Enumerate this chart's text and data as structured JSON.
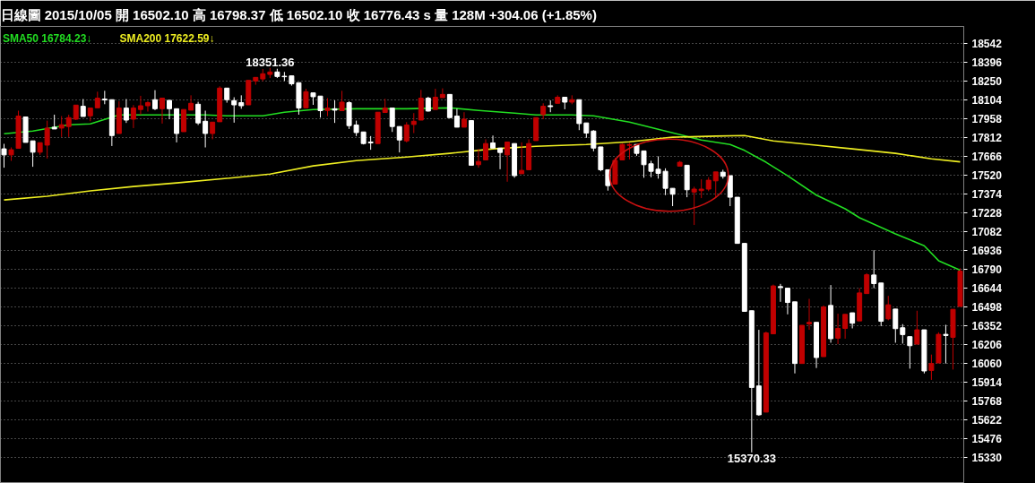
{
  "chart_data": {
    "type": "candlestick",
    "title": "日線圖 2015/10/05 開 16502.10 高 16798.37 低 16502.10 收 16776.43 s 量 128M +304.06 (+1.85%)",
    "categories": [
      null,
      null,
      null,
      null,
      null,
      null,
      null,
      null,
      null,
      null,
      null,
      null,
      null,
      null,
      null,
      null,
      null,
      null,
      null,
      null,
      null,
      null,
      null,
      null,
      null,
      null,
      null,
      null,
      null,
      null,
      null,
      null,
      null,
      null,
      null,
      null,
      null,
      null,
      null,
      null,
      null,
      null,
      null,
      null,
      null,
      null,
      null,
      null,
      null,
      null,
      null,
      null,
      null,
      null,
      null,
      null,
      null,
      null,
      null,
      null,
      null,
      null,
      null,
      null,
      null,
      null,
      null,
      null,
      null,
      null,
      null,
      null,
      null,
      null,
      null,
      null,
      null,
      null,
      null,
      null,
      null,
      null,
      null,
      null,
      null,
      null,
      null,
      null,
      null,
      null,
      null,
      null,
      null,
      null,
      null,
      null,
      null,
      null,
      null,
      null,
      null,
      null,
      null,
      null,
      null,
      null,
      null,
      null,
      null,
      null,
      null,
      null,
      null,
      null,
      null,
      null,
      null,
      null,
      null,
      null,
      null,
      null,
      null,
      null,
      null,
      null,
      null,
      null,
      null,
      null,
      null,
      null,
      null,
      null
    ],
    "ohlc": [
      [
        17724,
        17763,
        17578,
        17677
      ],
      [
        17677,
        17735,
        17631,
        17717
      ],
      [
        17728,
        18020,
        17728,
        17978
      ],
      [
        17971,
        17971,
        17774,
        17774
      ],
      [
        17786,
        17786,
        17585,
        17698
      ],
      [
        17698,
        17772,
        17677,
        17772
      ],
      [
        17753,
        17943,
        17649,
        17885
      ],
      [
        17892,
        17989,
        17878,
        17878
      ],
      [
        17885,
        17978,
        17816,
        17911
      ],
      [
        17897,
        17989,
        17816,
        17966
      ],
      [
        17954,
        18063,
        17947,
        18063
      ],
      [
        18054,
        18110,
        17975,
        17975
      ],
      [
        17980,
        18040,
        17938,
        18040
      ],
      [
        18042,
        18167,
        18042,
        18117
      ],
      [
        18110,
        18174,
        18070,
        18103
      ],
      [
        18105,
        18105,
        17746,
        17827
      ],
      [
        17843,
        18093,
        17843,
        18040
      ],
      [
        18040,
        18110,
        17925,
        17947
      ],
      [
        17954,
        18063,
        17885,
        18040
      ],
      [
        18029,
        18135,
        17989,
        18058
      ],
      [
        18058,
        18093,
        18013,
        18082
      ],
      [
        18105,
        18179,
        18024,
        18035
      ],
      [
        18035,
        18117,
        17920,
        18117
      ],
      [
        18100,
        18100,
        17954,
        18035
      ],
      [
        18035,
        18035,
        17774,
        17843
      ],
      [
        17857,
        18029,
        17857,
        18029
      ],
      [
        18024,
        18139,
        18024,
        18077
      ],
      [
        18070,
        18089,
        17909,
        17925
      ],
      [
        17938,
        18020,
        17735,
        17843
      ],
      [
        17843,
        17931,
        17798,
        17931
      ],
      [
        17934,
        18209,
        17934,
        18195
      ],
      [
        18195,
        18195,
        18082,
        18105
      ],
      [
        18098,
        18124,
        17927,
        18065
      ],
      [
        18082,
        18139,
        18035,
        18058
      ],
      [
        18065,
        18255,
        18065,
        18255
      ],
      [
        18250,
        18278,
        18221,
        18278
      ],
      [
        18266,
        18343,
        18248,
        18306
      ],
      [
        18301,
        18351.36,
        18273,
        18320
      ],
      [
        18320,
        18345,
        18273,
        18285
      ],
      [
        18287,
        18320,
        18250,
        18283
      ],
      [
        18290,
        18290,
        18214,
        18228
      ],
      [
        18237,
        18237,
        17989,
        18040
      ],
      [
        18042,
        18190,
        18042,
        18167
      ],
      [
        18158,
        18158,
        18065,
        18128
      ],
      [
        18133,
        18133,
        17966,
        18020
      ],
      [
        18022,
        18117,
        17978,
        18040
      ],
      [
        18035,
        18100,
        17925,
        18024
      ],
      [
        18020,
        18174,
        18020,
        18086
      ],
      [
        18082,
        18093,
        17878,
        17904
      ],
      [
        17909,
        17943,
        17823,
        17850
      ],
      [
        17855,
        17855,
        17758,
        17765
      ],
      [
        17777,
        17823,
        17717,
        17770
      ],
      [
        17765,
        18008,
        17765,
        18008
      ],
      [
        18006,
        18112,
        18006,
        18040
      ],
      [
        18040,
        18040,
        17855,
        17897
      ],
      [
        17897,
        17897,
        17696,
        17793
      ],
      [
        17786,
        17931,
        17774,
        17909
      ],
      [
        17913,
        18001,
        17846,
        17938
      ],
      [
        17947,
        18181,
        17947,
        18117
      ],
      [
        18117,
        18128,
        18013,
        18017
      ],
      [
        18029,
        18190,
        18029,
        18124
      ],
      [
        18121,
        18193,
        18121,
        18146
      ],
      [
        18146,
        18146,
        17966,
        17966
      ],
      [
        17978,
        18035,
        17892,
        17892
      ],
      [
        17892,
        18008,
        17892,
        17954
      ],
      [
        17943,
        17943,
        17597,
        17597
      ],
      [
        17601,
        17724,
        17578,
        17626
      ],
      [
        17638,
        17798,
        17638,
        17765
      ],
      [
        17770,
        17827,
        17730,
        17730
      ],
      [
        17730,
        17730,
        17566,
        17696
      ],
      [
        17677,
        17777,
        17469,
        17777
      ],
      [
        17765,
        17765,
        17500,
        17516
      ],
      [
        17531,
        17774,
        17531,
        17557
      ],
      [
        17562,
        17798,
        17562,
        17765
      ],
      [
        17788,
        17966,
        17788,
        17966
      ],
      [
        17989,
        18077,
        17954,
        18054
      ],
      [
        18058,
        18100,
        18008,
        18051
      ],
      [
        18077,
        18139,
        18077,
        18124
      ],
      [
        18124,
        18124,
        18031,
        18086
      ],
      [
        18086,
        18139,
        18070,
        18105
      ],
      [
        18105,
        18105,
        17869,
        17920
      ],
      [
        17925,
        17925,
        17809,
        17846
      ],
      [
        17862,
        17869,
        17705,
        17730
      ],
      [
        17739,
        17739,
        17550,
        17562
      ],
      [
        17562,
        17562,
        17400,
        17439
      ],
      [
        17451,
        17654,
        17451,
        17635
      ],
      [
        17638,
        17765,
        17638,
        17758
      ],
      [
        17751,
        17770,
        17642,
        17758
      ],
      [
        17758,
        17758,
        17670,
        17689
      ],
      [
        17708,
        17708,
        17500,
        17601
      ],
      [
        17608,
        17631,
        17504,
        17550
      ],
      [
        17566,
        17666,
        17493,
        17534
      ],
      [
        17550,
        17573,
        17365,
        17418
      ],
      [
        17418,
        17418,
        17280,
        17372
      ],
      [
        17590,
        17631,
        17590,
        17620
      ],
      [
        17597,
        17597,
        17349,
        17407
      ],
      [
        17389,
        17430,
        17134,
        17412
      ],
      [
        17400,
        17488,
        17342,
        17412
      ],
      [
        17412,
        17504,
        17396,
        17481
      ],
      [
        17476,
        17545,
        17342,
        17545
      ],
      [
        17543,
        17562,
        17493,
        17511
      ],
      [
        17516,
        17516,
        17280,
        17349
      ],
      [
        17349,
        17349,
        16991,
        16991
      ],
      [
        16991,
        16991,
        16464,
        16464
      ],
      [
        16469,
        16469,
        15370.33,
        15874
      ],
      [
        15886,
        16321,
        15655,
        15662
      ],
      [
        15683,
        16307,
        15683,
        16297
      ],
      [
        16290,
        16672,
        16290,
        16661
      ],
      [
        16656,
        16677,
        16538,
        16649
      ],
      [
        16644,
        16644,
        16441,
        16533
      ],
      [
        16538,
        16538,
        15983,
        16060
      ],
      [
        16060,
        16356,
        16060,
        16356
      ],
      [
        16367,
        16561,
        16321,
        16379
      ],
      [
        16379,
        16379,
        16025,
        16106
      ],
      [
        16113,
        16510,
        16113,
        16498
      ],
      [
        16510,
        16668,
        16221,
        16252
      ],
      [
        16256,
        16446,
        16210,
        16332
      ],
      [
        16332,
        16441,
        16252,
        16441
      ],
      [
        16453,
        16453,
        16332,
        16372
      ],
      [
        16390,
        16644,
        16390,
        16607
      ],
      [
        16602,
        16760,
        16602,
        16748
      ],
      [
        16746,
        16938,
        16644,
        16679
      ],
      [
        16684,
        16684,
        16349,
        16387
      ],
      [
        16406,
        16584,
        16395,
        16515
      ],
      [
        16482,
        16482,
        16221,
        16330
      ],
      [
        16337,
        16365,
        16214,
        16284
      ],
      [
        16268,
        16268,
        16020,
        16198
      ],
      [
        16210,
        16469,
        16210,
        16321
      ],
      [
        16321,
        16321,
        15983,
        16002
      ],
      [
        16006,
        16129,
        15933,
        16060
      ],
      [
        16064,
        16302,
        16064,
        16286
      ],
      [
        16286,
        16360,
        16060,
        16277
      ],
      [
        16263,
        16480,
        16013,
        16480
      ],
      [
        16502.1,
        16798.37,
        16502.1,
        16776.43
      ]
    ],
    "colors": [
      "#ffffff",
      "#c00000",
      "#c00000",
      "#ffffff",
      "#ffffff",
      "#c00000",
      "#c00000",
      "#ffffff",
      "#c00000",
      "#c00000",
      "#c00000",
      "#ffffff",
      "#c00000",
      "#c00000",
      "#ffffff",
      "#ffffff",
      "#c00000",
      "#ffffff",
      "#c00000",
      "#c00000",
      "#c00000",
      "#ffffff",
      "#c00000",
      "#ffffff",
      "#ffffff",
      "#c00000",
      "#c00000",
      "#ffffff",
      "#ffffff",
      "#c00000",
      "#c00000",
      "#ffffff",
      "#ffffff",
      "#ffffff",
      "#c00000",
      "#c00000",
      "#c00000",
      "#c00000",
      "#ffffff",
      "#ffffff",
      "#ffffff",
      "#ffffff",
      "#c00000",
      "#ffffff",
      "#ffffff",
      "#c00000",
      "#ffffff",
      "#c00000",
      "#ffffff",
      "#ffffff",
      "#ffffff",
      "#ffffff",
      "#c00000",
      "#c00000",
      "#ffffff",
      "#ffffff",
      "#c00000",
      "#c00000",
      "#c00000",
      "#ffffff",
      "#c00000",
      "#c00000",
      "#ffffff",
      "#ffffff",
      "#c00000",
      "#ffffff",
      "#c00000",
      "#c00000",
      "#ffffff",
      "#ffffff",
      "#c00000",
      "#ffffff",
      "#c00000",
      "#c00000",
      "#c00000",
      "#c00000",
      "#ffffff",
      "#c00000",
      "#ffffff",
      "#c00000",
      "#ffffff",
      "#ffffff",
      "#ffffff",
      "#ffffff",
      "#ffffff",
      "#c00000",
      "#c00000",
      "#c00000",
      "#ffffff",
      "#ffffff",
      "#ffffff",
      "#ffffff",
      "#ffffff",
      "#ffffff",
      "#c00000",
      "#ffffff",
      "#c00000",
      "#c00000",
      "#c00000",
      "#c00000",
      "#ffffff",
      "#ffffff",
      "#ffffff",
      "#ffffff",
      "#ffffff",
      "#ffffff",
      "#c00000",
      "#c00000",
      "#ffffff",
      "#ffffff",
      "#ffffff",
      "#c00000",
      "#c00000",
      "#ffffff",
      "#c00000",
      "#ffffff",
      "#c00000",
      "#c00000",
      "#ffffff",
      "#c00000",
      "#c00000",
      "#ffffff",
      "#ffffff",
      "#c00000",
      "#ffffff",
      "#ffffff",
      "#ffffff",
      "#c00000",
      "#ffffff",
      "#c00000",
      "#c00000",
      "#ffffff",
      "#c00000",
      "#c00000"
    ],
    "series": [
      {
        "type": "line",
        "name": "SMA50 16784.23↓",
        "color": "#22dd22",
        "values": [
          17841,
          null,
          null,
          null,
          17862,
          null,
          null,
          null,
          null,
          17911,
          null,
          null,
          17918,
          null,
          null,
          null,
          17987,
          null,
          null,
          17987,
          null,
          null,
          null,
          null,
          17987,
          null,
          null,
          null,
          17987,
          null,
          null,
          17980,
          null,
          null,
          null,
          null,
          17980,
          null,
          null,
          18008,
          null,
          null,
          null,
          18029,
          null,
          null,
          null,
          null,
          null,
          18035,
          null,
          null,
          null,
          null,
          null,
          null,
          18035,
          null,
          null,
          null,
          null,
          null,
          18042,
          null,
          null,
          null,
          18022,
          null,
          null,
          null,
          null,
          18001,
          null,
          null,
          17987,
          null,
          null,
          null,
          null,
          17987,
          null,
          null,
          17980,
          null,
          null,
          null,
          null,
          17931,
          null,
          null,
          null,
          null,
          17862,
          null,
          null,
          null,
          null,
          17793,
          null,
          null,
          null,
          17758,
          null,
          17712,
          null,
          null,
          17620,
          null,
          null,
          17515,
          null,
          null,
          null,
          17365,
          null,
          null,
          null,
          17259,
          null,
          17190,
          null,
          null,
          null,
          null,
          17065,
          null,
          null,
          null,
          16973,
          null,
          16857,
          null,
          null,
          16784
        ]
      },
      {
        "type": "line",
        "name": "SMA200 17622.59↓",
        "color": "#eeee22",
        "values": [
          17328,
          null,
          null,
          null,
          null,
          null,
          17356,
          null,
          null,
          null,
          null,
          null,
          17398,
          null,
          null,
          null,
          null,
          null,
          17432,
          null,
          null,
          null,
          null,
          null,
          17460,
          null,
          null,
          null,
          null,
          null,
          null,
          17495,
          null,
          null,
          null,
          null,
          null,
          17529,
          null,
          null,
          null,
          null,
          null,
          17592,
          null,
          null,
          null,
          null,
          null,
          17633,
          null,
          null,
          null,
          null,
          null,
          null,
          17661,
          null,
          null,
          null,
          null,
          null,
          17689,
          null,
          null,
          null,
          null,
          null,
          17724,
          null,
          null,
          null,
          null,
          null,
          17744,
          null,
          null,
          null,
          null,
          null,
          null,
          17758,
          null,
          null,
          null,
          null,
          null,
          17779,
          null,
          null,
          null,
          null,
          null,
          17814,
          null,
          null,
          null,
          null,
          null,
          17823,
          null,
          null,
          null,
          17827,
          null,
          null,
          null,
          17786,
          null,
          null,
          null,
          null,
          17758,
          null,
          null,
          null,
          null,
          null,
          17724,
          null,
          null,
          null,
          null,
          null,
          17689,
          null,
          null,
          null,
          null,
          17647,
          null,
          null,
          null,
          17623
        ]
      }
    ],
    "ylim": [
      15130,
      18673
    ],
    "yticks": [
      18542,
      18396,
      18250,
      18104,
      17958,
      17812,
      17666,
      17520,
      17374,
      17228,
      17082,
      16936,
      16790,
      16644,
      16498,
      16352,
      16206,
      16060,
      15914,
      15768,
      15622,
      15476,
      15330
    ],
    "annotations": [
      {
        "text": "18351.36",
        "y": 18351.36
      },
      "15370.33"
    ],
    "grid": "y",
    "legend": "top left",
    "tick_labels": "y"
  }
}
